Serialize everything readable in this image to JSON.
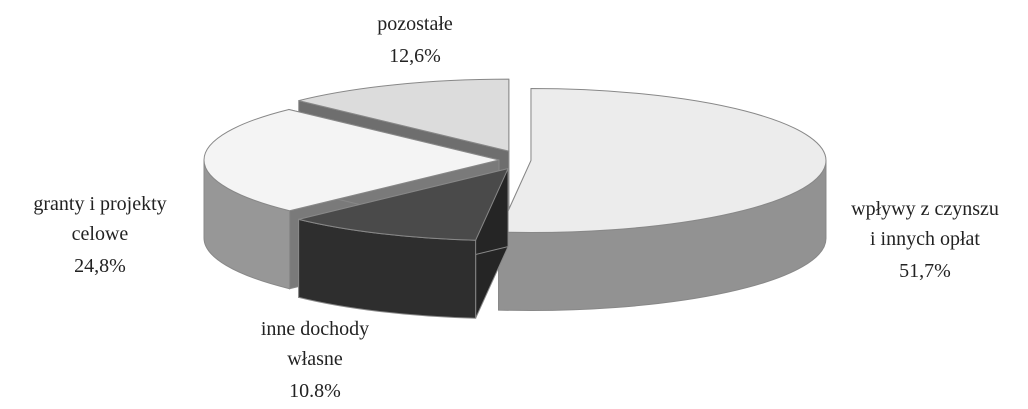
{
  "chart_data": {
    "type": "pie3d",
    "categories": [
      "wpływy z czynszu\ni innych opłat",
      "inne dochody\nwłasne",
      "granty i projekty\ncelowe",
      "pozostałe"
    ],
    "values": [
      51.7,
      10.8,
      24.8,
      12.6
    ],
    "value_labels": [
      "51,7%",
      "10.8%",
      "24,8%",
      "12,6%"
    ],
    "colors": [
      "#ececec",
      "#4a4a4a",
      "#f4f4f4",
      "#dcdcdc"
    ]
  }
}
